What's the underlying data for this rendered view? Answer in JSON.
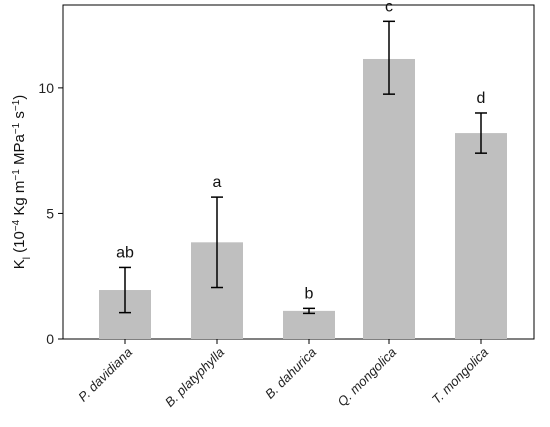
{
  "chart_data": {
    "type": "bar",
    "categories": [
      "P. davidiana",
      "B. platyphylla",
      "B. dahurica",
      "Q. mongolica",
      "T. mongolica"
    ],
    "values": [
      1.95,
      3.85,
      1.12,
      11.15,
      8.2
    ],
    "error_low": [
      1.05,
      2.05,
      1.02,
      9.75,
      7.4
    ],
    "error_high": [
      2.85,
      5.65,
      1.22,
      12.65,
      9.0
    ],
    "group_letters": [
      "ab",
      "a",
      "b",
      "c",
      "d"
    ],
    "ylabel": {
      "main": "K",
      "main_sub": "l",
      "unit_prefix": " (10",
      "exp1": "−4",
      "unit_kg": " Kg m",
      "exp2": "−1",
      "unit_mpa": " MPa",
      "exp3": "−1",
      "unit_s": " s",
      "exp4": "−1",
      "close": ")"
    },
    "yticks": [
      0,
      5,
      10
    ],
    "ylim": [
      0,
      13.3
    ],
    "bar_color": "#bfbfbf",
    "grid": false
  }
}
